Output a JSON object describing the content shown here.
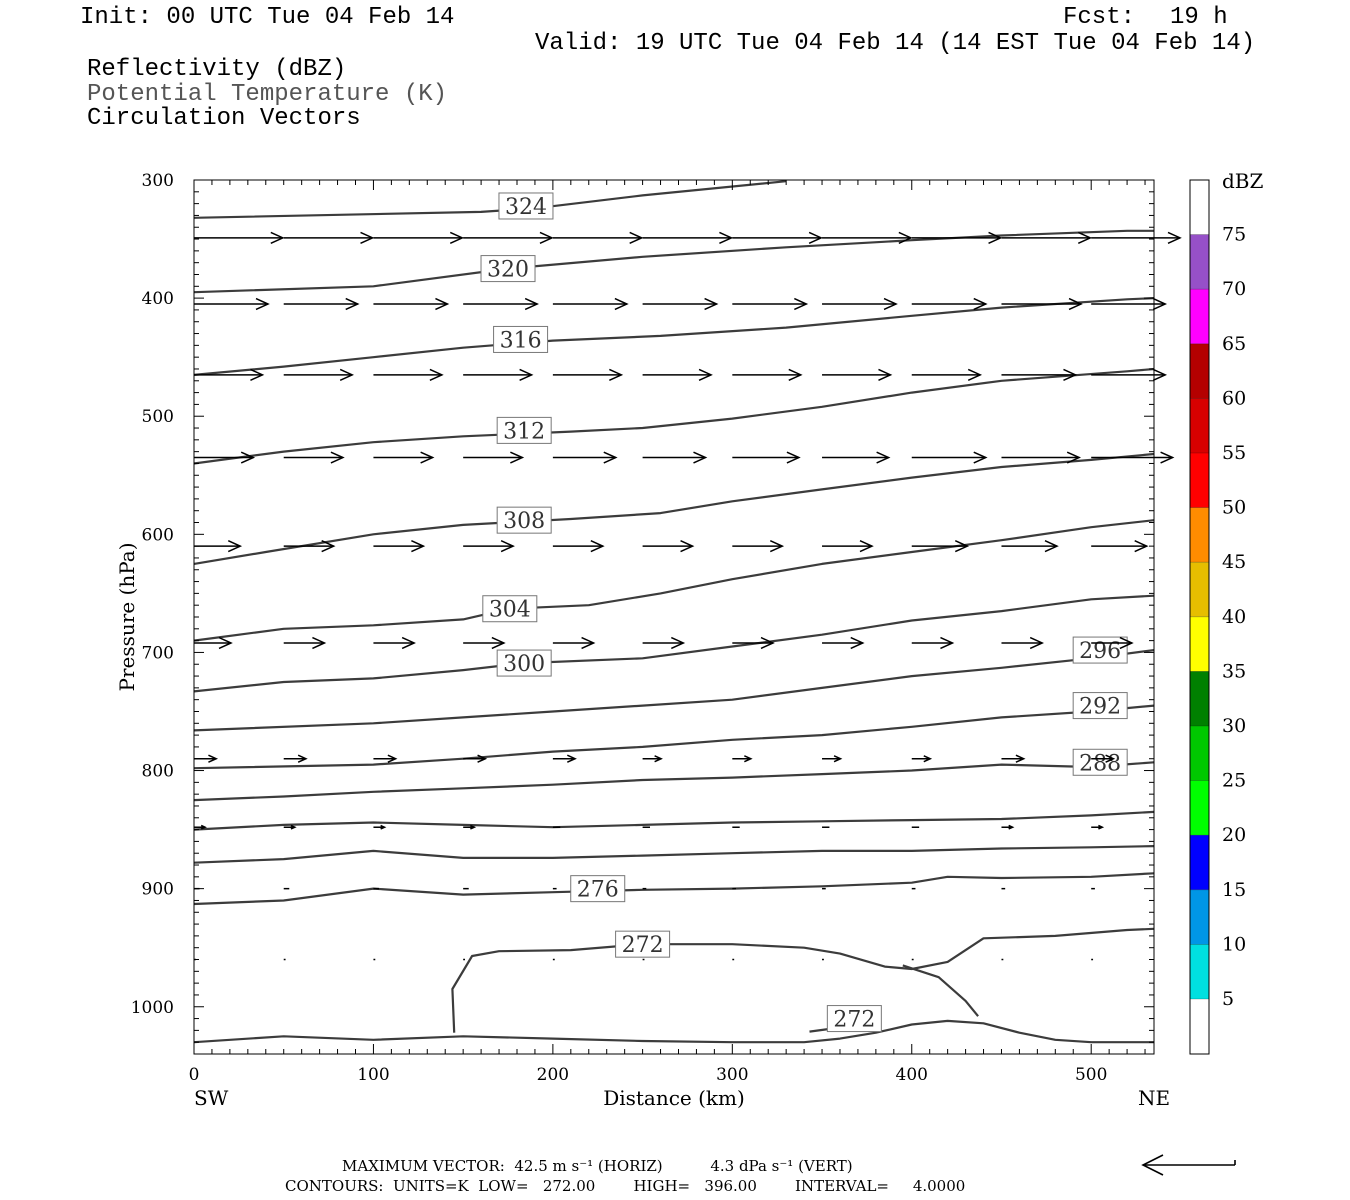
{
  "header": {
    "init": "Init: 00 UTC Tue 04 Feb 14",
    "fcst_label": "Fcst:",
    "fcst_value": "19 h",
    "valid": "Valid: 19 UTC Tue 04 Feb 14 (14 EST Tue 04 Feb 14)"
  },
  "fields": {
    "reflectivity": "Reflectivity (dBZ)",
    "theta": "Potential Temperature (K)",
    "vectors": "Circulation Vectors"
  },
  "footer": {
    "max_vector": "MAXIMUM VECTOR:  42.5 m s⁻¹ (HORIZ)          4.3 dPa s⁻¹ (VERT)",
    "contours": "CONTOURS:  UNITS=K  LOW=   272.00        HIGH=   396.00        INTERVAL=     4.0000"
  },
  "chart_data": {
    "type": "line",
    "title": "",
    "xlabel": "Distance (km)",
    "ylabel": "Pressure (hPa)",
    "xlim": [
      0,
      535
    ],
    "ylim": [
      1040,
      300
    ],
    "x_ticks": [
      0,
      100,
      200,
      300,
      400,
      500
    ],
    "y_ticks": [
      300,
      400,
      500,
      600,
      700,
      800,
      900,
      1000
    ],
    "x_end_labels": {
      "left": "SW",
      "right": "NE"
    },
    "colorbar": {
      "title": "dBZ",
      "levels": [
        "5",
        "10",
        "15",
        "20",
        "25",
        "30",
        "35",
        "40",
        "45",
        "50",
        "55",
        "60",
        "65",
        "70",
        "75"
      ],
      "colors": [
        "#ffffff",
        "#00e0e0",
        "#0096e6",
        "#0000ff",
        "#00ff00",
        "#00c800",
        "#008000",
        "#ffff00",
        "#e6be00",
        "#ff8c00",
        "#ff0000",
        "#d70000",
        "#b40000",
        "#ff00ff",
        "#9650c8",
        "#ffffff"
      ]
    },
    "contour_color": "#3c3c3c",
    "series": [
      {
        "name": "324",
        "label_at": [
          185,
          322
        ],
        "points": [
          [
            0,
            332
          ],
          [
            160,
            327
          ],
          [
            190,
            324
          ],
          [
            250,
            313
          ],
          [
            330,
            301
          ]
        ]
      },
      {
        "name": "320",
        "label_at": [
          175,
          375
        ],
        "points": [
          [
            0,
            395
          ],
          [
            100,
            390
          ],
          [
            175,
            375
          ],
          [
            250,
            365
          ],
          [
            330,
            357
          ],
          [
            400,
            351
          ],
          [
            450,
            347
          ],
          [
            520,
            343
          ],
          [
            535,
            343
          ]
        ]
      },
      {
        "name": "316",
        "label_at": [
          182,
          435
        ],
        "points": [
          [
            0,
            465
          ],
          [
            50,
            458
          ],
          [
            100,
            450
          ],
          [
            150,
            442
          ],
          [
            200,
            436
          ],
          [
            260,
            432
          ],
          [
            330,
            425
          ],
          [
            400,
            415
          ],
          [
            450,
            408
          ],
          [
            520,
            401
          ],
          [
            535,
            400
          ]
        ]
      },
      {
        "name": "312",
        "label_at": [
          184,
          512
        ],
        "points": [
          [
            0,
            540
          ],
          [
            50,
            530
          ],
          [
            100,
            522
          ],
          [
            150,
            517
          ],
          [
            210,
            513
          ],
          [
            250,
            510
          ],
          [
            300,
            502
          ],
          [
            350,
            492
          ],
          [
            400,
            480
          ],
          [
            450,
            470
          ],
          [
            520,
            462
          ],
          [
            535,
            460
          ]
        ]
      },
      {
        "name": "308",
        "label_at": [
          184,
          588
        ],
        "points": [
          [
            0,
            625
          ],
          [
            40,
            615
          ],
          [
            100,
            600
          ],
          [
            150,
            592
          ],
          [
            210,
            587
          ],
          [
            260,
            582
          ],
          [
            300,
            572
          ],
          [
            350,
            562
          ],
          [
            400,
            552
          ],
          [
            450,
            543
          ],
          [
            500,
            537
          ],
          [
            535,
            532
          ]
        ]
      },
      {
        "name": "304",
        "label_at": [
          176,
          663
        ],
        "points": [
          [
            0,
            690
          ],
          [
            50,
            680
          ],
          [
            100,
            677
          ],
          [
            150,
            672
          ],
          [
            176,
            663
          ],
          [
            220,
            660
          ],
          [
            260,
            650
          ],
          [
            300,
            638
          ],
          [
            350,
            625
          ],
          [
            400,
            615
          ],
          [
            450,
            605
          ],
          [
            500,
            594
          ],
          [
            535,
            588
          ]
        ]
      },
      {
        "name": "300",
        "label_at": [
          184,
          709
        ],
        "points": [
          [
            0,
            733
          ],
          [
            50,
            725
          ],
          [
            100,
            722
          ],
          [
            150,
            715
          ],
          [
            184,
            709
          ],
          [
            250,
            705
          ],
          [
            300,
            695
          ],
          [
            350,
            685
          ],
          [
            400,
            673
          ],
          [
            450,
            665
          ],
          [
            500,
            655
          ],
          [
            535,
            652
          ]
        ]
      },
      {
        "name": "296",
        "label_at": [
          505,
          698
        ],
        "points": [
          [
            0,
            766
          ],
          [
            100,
            760
          ],
          [
            150,
            755
          ],
          [
            200,
            750
          ],
          [
            250,
            745
          ],
          [
            300,
            740
          ],
          [
            350,
            730
          ],
          [
            400,
            720
          ],
          [
            450,
            713
          ],
          [
            500,
            705
          ],
          [
            535,
            698
          ]
        ]
      },
      {
        "name": "292",
        "label_at": [
          505,
          745
        ],
        "points": [
          [
            0,
            798
          ],
          [
            100,
            795
          ],
          [
            150,
            790
          ],
          [
            200,
            784
          ],
          [
            250,
            780
          ],
          [
            300,
            774
          ],
          [
            350,
            770
          ],
          [
            400,
            763
          ],
          [
            450,
            755
          ],
          [
            500,
            750
          ],
          [
            535,
            745
          ]
        ]
      },
      {
        "name": "288",
        "label_at": [
          505,
          793
        ],
        "points": [
          [
            0,
            825
          ],
          [
            50,
            822
          ],
          [
            100,
            818
          ],
          [
            150,
            815
          ],
          [
            200,
            812
          ],
          [
            250,
            808
          ],
          [
            300,
            806
          ],
          [
            350,
            803
          ],
          [
            400,
            800
          ],
          [
            450,
            795
          ],
          [
            500,
            797
          ],
          [
            535,
            793
          ]
        ]
      },
      {
        "name": "",
        "label_at": null,
        "points": [
          [
            0,
            850
          ],
          [
            50,
            846
          ],
          [
            100,
            844
          ],
          [
            150,
            846
          ],
          [
            200,
            848
          ],
          [
            250,
            846
          ],
          [
            300,
            844
          ],
          [
            350,
            843
          ],
          [
            400,
            842
          ],
          [
            450,
            841
          ],
          [
            500,
            838
          ],
          [
            535,
            835
          ]
        ]
      },
      {
        "name": "",
        "label_at": null,
        "points": [
          [
            0,
            878
          ],
          [
            50,
            875
          ],
          [
            100,
            868
          ],
          [
            150,
            874
          ],
          [
            200,
            874
          ],
          [
            250,
            872
          ],
          [
            300,
            870
          ],
          [
            350,
            868
          ],
          [
            400,
            868
          ],
          [
            450,
            866
          ],
          [
            500,
            865
          ],
          [
            535,
            864
          ]
        ]
      },
      {
        "name": "276",
        "label_at": [
          225,
          900
        ],
        "points": [
          [
            0,
            913
          ],
          [
            50,
            910
          ],
          [
            100,
            900
          ],
          [
            150,
            905
          ],
          [
            200,
            903
          ],
          [
            250,
            901
          ],
          [
            300,
            900
          ],
          [
            350,
            898
          ],
          [
            400,
            895
          ],
          [
            420,
            890
          ],
          [
            450,
            891
          ],
          [
            500,
            890
          ],
          [
            535,
            887
          ]
        ]
      },
      {
        "name": "272",
        "label_at": [
          250,
          947
        ],
        "points": [
          [
            145,
            1022
          ],
          [
            144,
            985
          ],
          [
            155,
            957
          ],
          [
            170,
            953
          ],
          [
            210,
            952
          ],
          [
            250,
            947
          ],
          [
            300,
            947
          ],
          [
            340,
            950
          ],
          [
            360,
            955
          ],
          [
            385,
            966
          ],
          [
            400,
            968
          ],
          [
            420,
            962
          ],
          [
            440,
            942
          ],
          [
            480,
            940
          ],
          [
            520,
            935
          ],
          [
            535,
            934
          ]
        ]
      },
      {
        "name": "",
        "label_at": null,
        "points": [
          [
            395,
            965
          ],
          [
            415,
            975
          ],
          [
            430,
            995
          ],
          [
            437,
            1008
          ]
        ]
      },
      {
        "name": "272",
        "label_at": [
          368,
          1010
        ],
        "points": [
          [
            343,
            1021
          ],
          [
            358,
            1018
          ]
        ]
      },
      {
        "name": "",
        "label_at": null,
        "points": [
          [
            0,
            1030
          ],
          [
            50,
            1025
          ],
          [
            100,
            1028
          ],
          [
            150,
            1025
          ],
          [
            200,
            1027
          ],
          [
            250,
            1029
          ],
          [
            300,
            1030
          ],
          [
            340,
            1030
          ],
          [
            360,
            1027
          ],
          [
            380,
            1022
          ],
          [
            400,
            1015
          ],
          [
            420,
            1012
          ],
          [
            440,
            1014
          ],
          [
            460,
            1022
          ],
          [
            480,
            1028
          ],
          [
            500,
            1030
          ],
          [
            535,
            1030
          ]
        ]
      }
    ],
    "vectors": {
      "x": [
        0,
        50,
        100,
        150,
        200,
        250,
        300,
        350,
        400,
        450,
        500
      ],
      "rows": [
        {
          "p": 349,
          "u": [
            48,
            48,
            48,
            48,
            48,
            48,
            48,
            48,
            48,
            48,
            48
          ],
          "w": [
            0,
            0,
            0,
            0,
            0,
            0,
            0,
            0,
            0,
            0,
            0
          ]
        },
        {
          "p": 405,
          "u": [
            40,
            40,
            40,
            40,
            40,
            40,
            40,
            40,
            40,
            43,
            40
          ],
          "w": [
            0,
            0,
            0,
            0,
            0,
            0,
            0,
            0,
            0,
            0,
            0
          ]
        },
        {
          "p": 465,
          "u": [
            37,
            37,
            37,
            37,
            37,
            37,
            37,
            37,
            37,
            40,
            40
          ],
          "w": [
            0,
            0,
            0,
            0,
            0,
            0,
            0,
            0,
            0,
            0,
            0
          ]
        },
        {
          "p": 535,
          "u": [
            32,
            32,
            32,
            32,
            34,
            34,
            36,
            36,
            40,
            42,
            44
          ],
          "w": [
            0,
            0,
            0,
            0,
            0,
            0,
            0,
            0,
            0,
            0,
            0
          ]
        },
        {
          "p": 610,
          "u": [
            25,
            27,
            27,
            27,
            27,
            27,
            27,
            27,
            30,
            30,
            30
          ],
          "w": [
            0,
            0,
            0,
            0,
            0,
            0,
            0,
            0,
            0,
            0,
            0
          ]
        },
        {
          "p": 692,
          "u": [
            20,
            22,
            22,
            22,
            22,
            22,
            22,
            22,
            22,
            22,
            22
          ],
          "w": [
            0,
            0,
            0,
            0,
            0,
            0,
            0,
            0,
            0,
            0,
            0
          ]
        },
        {
          "p": 790,
          "u": [
            12,
            12,
            12,
            12,
            12,
            10,
            10,
            10,
            10,
            12,
            12
          ],
          "w": [
            0,
            0,
            0,
            0,
            0,
            0,
            0,
            0,
            0,
            0,
            0
          ]
        },
        {
          "p": 848,
          "u": [
            6,
            6,
            6,
            6,
            4,
            4,
            4,
            4,
            4,
            6,
            6
          ],
          "w": [
            0,
            0,
            0,
            0,
            0,
            0,
            0,
            0,
            0,
            0,
            0
          ]
        },
        {
          "p": 900,
          "u": [
            3,
            3,
            3,
            3,
            2,
            2,
            2,
            2,
            2,
            2,
            2
          ],
          "w": [
            0,
            0,
            0,
            0,
            0,
            0,
            0,
            0,
            0,
            0,
            0
          ]
        },
        {
          "p": 960,
          "u": [
            1,
            1,
            1,
            1,
            1,
            1,
            1,
            1,
            1,
            1,
            1
          ],
          "w": [
            0,
            0,
            0,
            0,
            0,
            0,
            0,
            0,
            0,
            0,
            0
          ]
        }
      ]
    },
    "reference_vector": "42.5 m s-1"
  }
}
